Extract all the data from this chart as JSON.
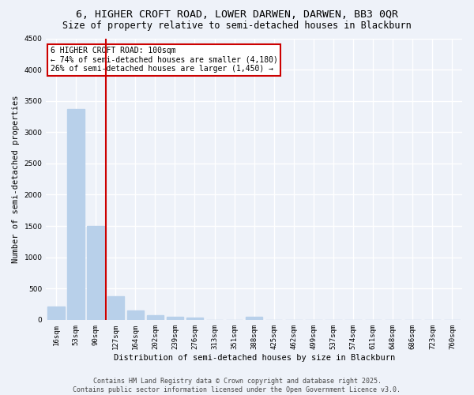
{
  "title1": "6, HIGHER CROFT ROAD, LOWER DARWEN, DARWEN, BB3 0QR",
  "title2": "Size of property relative to semi-detached houses in Blackburn",
  "xlabel": "Distribution of semi-detached houses by size in Blackburn",
  "ylabel": "Number of semi-detached properties",
  "categories": [
    "16sqm",
    "53sqm",
    "90sqm",
    "127sqm",
    "164sqm",
    "202sqm",
    "239sqm",
    "276sqm",
    "313sqm",
    "351sqm",
    "388sqm",
    "425sqm",
    "462sqm",
    "499sqm",
    "537sqm",
    "574sqm",
    "611sqm",
    "648sqm",
    "686sqm",
    "723sqm",
    "760sqm"
  ],
  "values": [
    210,
    3370,
    1500,
    380,
    150,
    70,
    45,
    40,
    0,
    0,
    50,
    0,
    0,
    0,
    0,
    0,
    0,
    0,
    0,
    0,
    0
  ],
  "bar_color": "#b8d0ea",
  "vline_color": "#cc0000",
  "vline_bar_index": 2,
  "annotation_lines": [
    "6 HIGHER CROFT ROAD: 100sqm",
    "← 74% of semi-detached houses are smaller (4,180)",
    "26% of semi-detached houses are larger (1,450) →"
  ],
  "annotation_box_color": "#cc0000",
  "ylim": [
    0,
    4500
  ],
  "yticks": [
    0,
    500,
    1000,
    1500,
    2000,
    2500,
    3000,
    3500,
    4000,
    4500
  ],
  "footer1": "Contains HM Land Registry data © Crown copyright and database right 2025.",
  "footer2": "Contains public sector information licensed under the Open Government Licence v3.0.",
  "bg_color": "#eef2f9",
  "plot_bg_color": "#eef2f9",
  "grid_color": "#ffffff",
  "title1_fontsize": 9.5,
  "title2_fontsize": 8.5,
  "axis_label_fontsize": 7.5,
  "tick_fontsize": 6.5,
  "annot_fontsize": 7,
  "footer_fontsize": 6
}
